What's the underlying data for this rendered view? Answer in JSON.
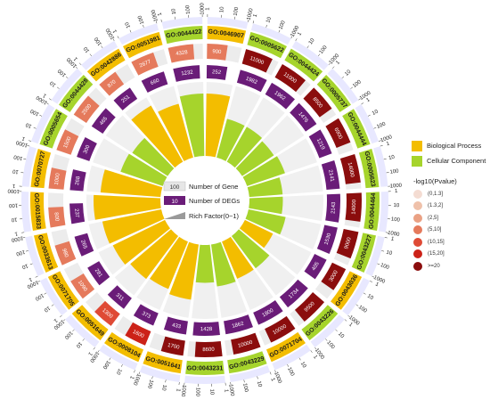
{
  "chart_data": {
    "type": "circular-enrichment",
    "scale_ticks": [
      "1",
      "10",
      "100",
      "1000"
    ],
    "colors": {
      "Biological Process": "#f3bd00",
      "Cellular Component": "#a6d42c",
      "deg_box": "#6a1c78",
      "gene_track_bg": "#ececec",
      "outer_ring": "#e8e8ff"
    },
    "terms": [
      {
        "id": "GO:0046907",
        "category": "Biological Process",
        "genes": 900,
        "degs": 252,
        "rich": 0.28,
        "pval": "(5,10]"
      },
      {
        "id": "GO:0005622",
        "category": "Cellular Component",
        "genes": 11000,
        "degs": 1982,
        "rich": 0.18,
        "pval": ">=20"
      },
      {
        "id": "GO:0044424",
        "category": "Cellular Component",
        "genes": 11000,
        "degs": 1962,
        "rich": 0.18,
        "pval": ">=20"
      },
      {
        "id": "GO:0005737",
        "category": "Cellular Component",
        "genes": 8500,
        "degs": 1476,
        "rich": 0.17,
        "pval": ">=20"
      },
      {
        "id": "GO:0044444",
        "category": "Cellular Component",
        "genes": 6900,
        "degs": 1219,
        "rich": 0.18,
        "pval": ">=20"
      },
      {
        "id": "GO:0005623",
        "category": "Cellular Component",
        "genes": 14000,
        "degs": 2141,
        "rich": 0.15,
        "pval": ">=20"
      },
      {
        "id": "GO:0044464",
        "category": "Cellular Component",
        "genes": 14000,
        "degs": 2143,
        "rich": 0.15,
        "pval": ">=20"
      },
      {
        "id": "GO:0043227",
        "category": "Cellular Component",
        "genes": 9000,
        "degs": 1530,
        "rich": 0.17,
        "pval": ">=20"
      },
      {
        "id": "GO:0043036",
        "category": "Biological Process",
        "genes": 3000,
        "degs": 405,
        "rich": 0.14,
        "pval": ">=20"
      },
      {
        "id": "GO:0043226",
        "category": "Cellular Component",
        "genes": 9500,
        "degs": 1734,
        "rich": 0.18,
        "pval": ">=20"
      },
      {
        "id": "GO:0071704",
        "category": "Biological Process",
        "genes": 10000,
        "degs": 1800,
        "rich": 0.18,
        "pval": ">=20"
      },
      {
        "id": "GO:0043229",
        "category": "Cellular Component",
        "genes": 10000,
        "degs": 1862,
        "rich": 0.19,
        "pval": ">=20"
      },
      {
        "id": "GO:0043231",
        "category": "Cellular Component",
        "genes": 8600,
        "degs": 1428,
        "rich": 0.17,
        "pval": ">=20"
      },
      {
        "id": "GO:0051641",
        "category": "Biological Process",
        "genes": 1700,
        "degs": 433,
        "rich": 0.25,
        "pval": ">=20"
      },
      {
        "id": "GO:0008104",
        "category": "Biological Process",
        "genes": 1600,
        "degs": 373,
        "rich": 0.23,
        "pval": "(15,20]"
      },
      {
        "id": "GO:0051649",
        "category": "Biological Process",
        "genes": 1300,
        "degs": 311,
        "rich": 0.24,
        "pval": "(10,15]"
      },
      {
        "id": "GO:0071705",
        "category": "Biological Process",
        "genes": 1090,
        "degs": 281,
        "rich": 0.26,
        "pval": "(5,10]"
      },
      {
        "id": "GO:0033613",
        "category": "Biological Process",
        "genes": 980,
        "degs": 265,
        "rich": 0.27,
        "pval": "(5,10]"
      },
      {
        "id": "GO:0015833",
        "category": "Biological Process",
        "genes": 800,
        "degs": 237,
        "rich": 0.3,
        "pval": "(5,10]"
      },
      {
        "id": "GO:0070727",
        "category": "Biological Process",
        "genes": 1000,
        "degs": 268,
        "rich": 0.27,
        "pval": "(5,10]"
      },
      {
        "id": "GO:0005654",
        "category": "Cellular Component",
        "genes": 1500,
        "degs": 300,
        "rich": 0.2,
        "pval": "(5,10]"
      },
      {
        "id": "GO:0044428",
        "category": "Cellular Component",
        "genes": 2500,
        "degs": 465,
        "rich": 0.19,
        "pval": "(5,10]"
      },
      {
        "id": "GO:0042886",
        "category": "Biological Process",
        "genes": 870,
        "degs": 251,
        "rich": 0.29,
        "pval": "(5,10]"
      },
      {
        "id": "GO:0051981",
        "category": "Biological Process",
        "genes": 2677,
        "degs": 660,
        "rich": 0.25,
        "pval": "(5,10]"
      },
      {
        "id": "GO:0044422",
        "category": "Cellular Component",
        "genes": 4328,
        "degs": 1232,
        "rich": 0.28,
        "pval": "(5,10]"
      }
    ],
    "legend": {
      "categories": [
        "Biological Process",
        "Cellular Component"
      ],
      "center": [
        "Number of Gene",
        "Number of DEGs",
        "Rich Factor(0~1)"
      ],
      "center_sample": [
        "100",
        "10"
      ],
      "pvalue_title": "-log10(Pvalue)",
      "pvalue_bins": [
        {
          "label": "(0,1.3]",
          "color": "#f4dcd2"
        },
        {
          "label": "(1.3,2]",
          "color": "#efc1aa"
        },
        {
          "label": "(2,5]",
          "color": "#eaa184"
        },
        {
          "label": "(5,10]",
          "color": "#e57a5c"
        },
        {
          "label": "(10,15]",
          "color": "#df4a35"
        },
        {
          "label": "(15,20]",
          "color": "#cc2218"
        },
        {
          "label": ">=20",
          "color": "#8b0d0d"
        }
      ]
    }
  }
}
